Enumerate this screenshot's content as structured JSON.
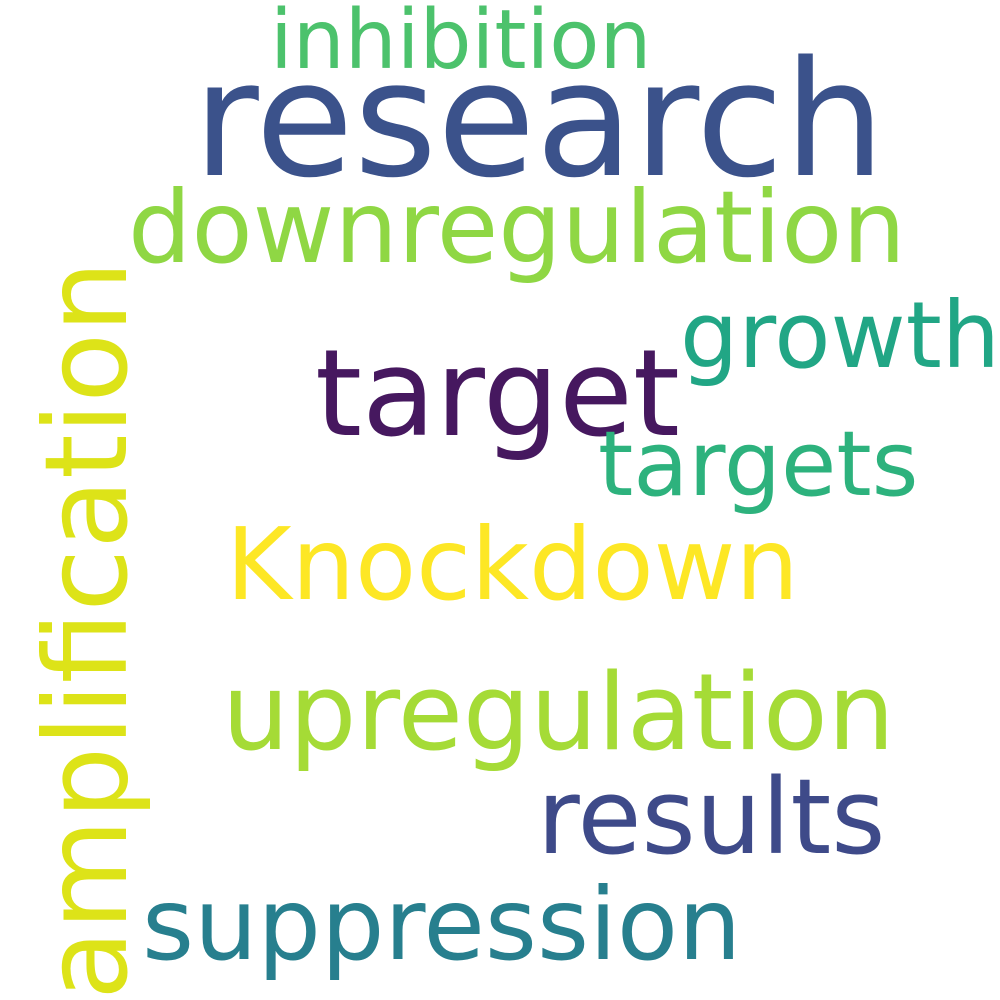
{
  "words": {
    "research": {
      "text": "research",
      "color": "#3b528b"
    },
    "inhibition": {
      "text": "inhibition",
      "color": "#4cc26c"
    },
    "downregulation": {
      "text": "downregulation",
      "color": "#8fd744"
    },
    "growth": {
      "text": "growth",
      "color": "#21a685"
    },
    "target": {
      "text": "target",
      "color": "#46185f"
    },
    "targets": {
      "text": "targets",
      "color": "#2db27d"
    },
    "knockdown": {
      "text": "Knockdown",
      "color": "#fde725"
    },
    "upregulation": {
      "text": "upregulation",
      "color": "#a5db36"
    },
    "results": {
      "text": "results",
      "color": "#3e4a89"
    },
    "suppression": {
      "text": "suppression",
      "color": "#277f8e"
    },
    "amplification": {
      "text": "amplification",
      "color": "#dde318"
    }
  }
}
